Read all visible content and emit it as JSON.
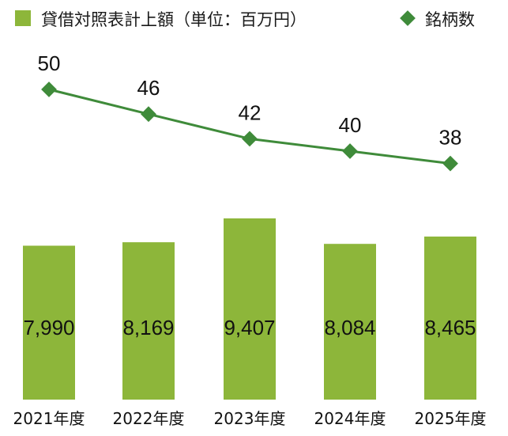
{
  "chart_data": {
    "type": "bar+line",
    "categories": [
      "2021年度",
      "2022年度",
      "2023年度",
      "2024年度",
      "2025年度"
    ],
    "series": [
      {
        "name": "貸借対照表計上額（単位：百万円）",
        "type": "bar",
        "values": [
          7990,
          8169,
          9407,
          8084,
          8465
        ],
        "value_labels": [
          "7,990",
          "8,169",
          "9,407",
          "8,084",
          "8,465"
        ],
        "color": "#8db63a"
      },
      {
        "name": "銘柄数",
        "type": "line",
        "marker": "diamond",
        "values": [
          50,
          46,
          42,
          40,
          38
        ],
        "value_labels": [
          "50",
          "46",
          "42",
          "40",
          "38"
        ],
        "color": "#3f8b3a"
      }
    ],
    "legend_position": "top",
    "grid": false
  }
}
